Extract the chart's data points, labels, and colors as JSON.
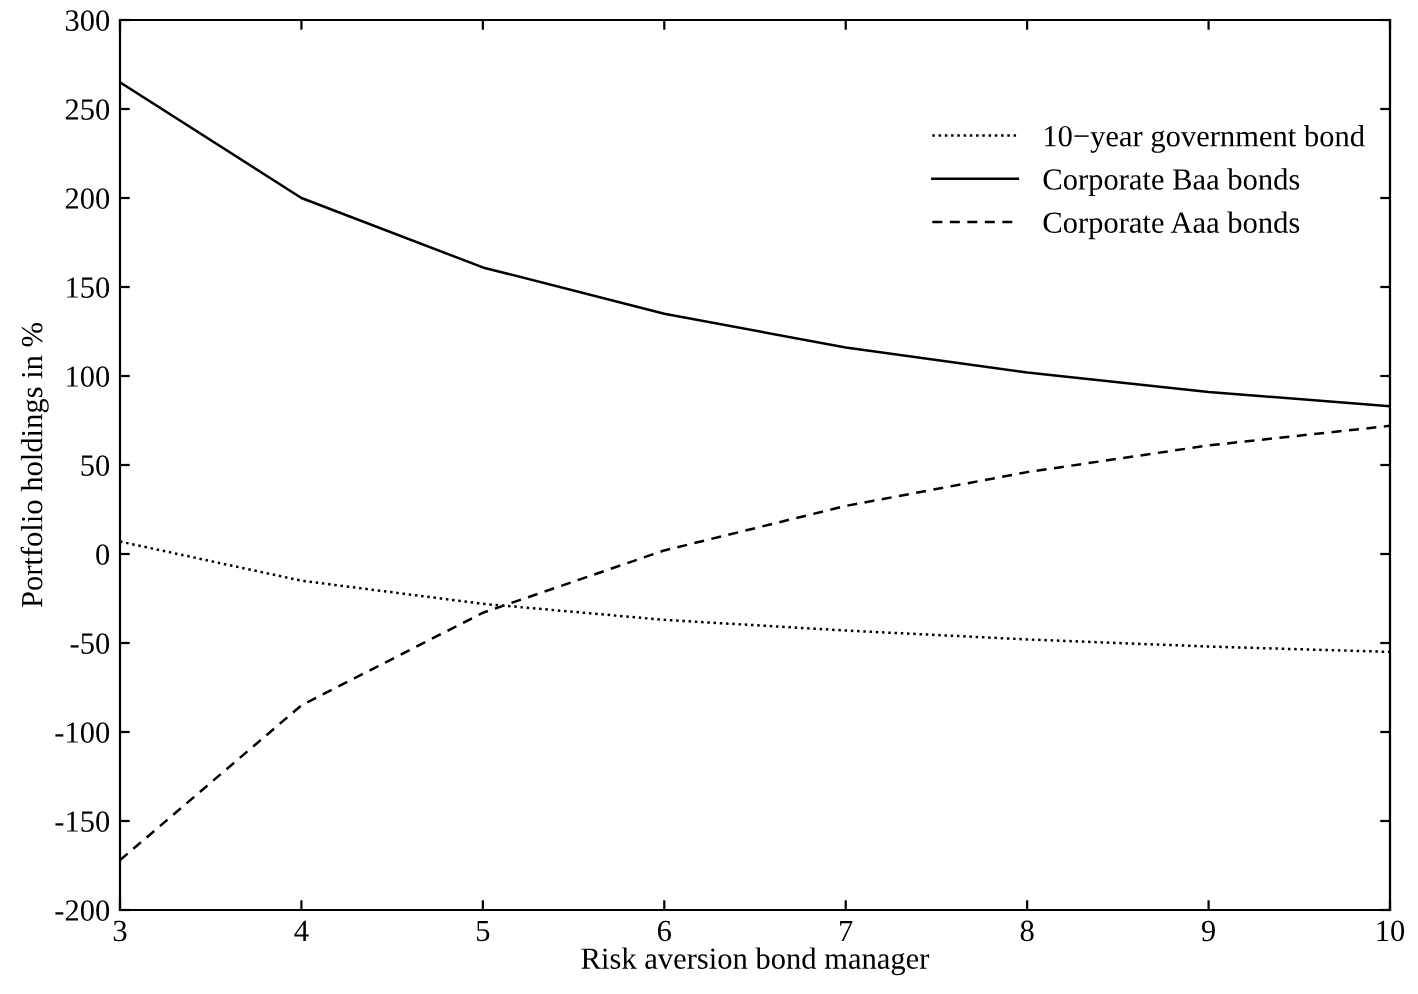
{
  "chart_data": {
    "type": "line",
    "xlabel": "Risk aversion bond manager",
    "ylabel": "Portfolio holdings in %",
    "x": [
      3,
      4,
      5,
      6,
      7,
      8,
      9,
      10
    ],
    "series": [
      {
        "name": "10−year government bond",
        "color": "#000000",
        "line_style": "dotted",
        "values": [
          7,
          -15,
          -28,
          -37,
          -43,
          -48,
          -52,
          -55
        ]
      },
      {
        "name": "Corporate Baa bonds",
        "color": "#000000",
        "line_style": "solid",
        "values": [
          265,
          200,
          161,
          135,
          116,
          102,
          91,
          83
        ]
      },
      {
        "name": "Corporate Aaa bonds",
        "color": "#000000",
        "line_style": "dashed",
        "values": [
          -172,
          -85,
          -33,
          2,
          27,
          46,
          61,
          72
        ]
      }
    ],
    "xlim": [
      3,
      10
    ],
    "xticks": [
      3,
      4,
      5,
      6,
      7,
      8,
      9,
      10
    ],
    "ylim": [
      -200,
      300
    ],
    "yticks": [
      -200,
      -150,
      -100,
      -50,
      0,
      50,
      100,
      150,
      200,
      250,
      300
    ],
    "grid": false,
    "legend": "top right",
    "marker": "none"
  }
}
